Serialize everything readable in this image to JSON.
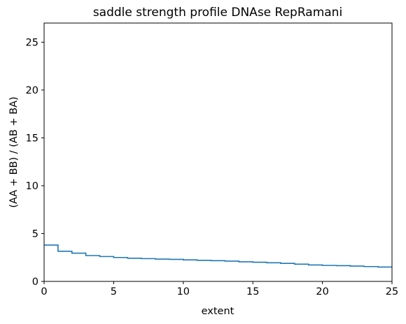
{
  "chart_data": {
    "type": "line",
    "drawstyle": "steps-post",
    "title": "saddle strength profile DNAse RepRamani",
    "xlabel": "extent",
    "ylabel": "(AA + BB) / (AB + BA)",
    "xlim": [
      0,
      25
    ],
    "ylim": [
      0,
      27
    ],
    "xticks": [
      0,
      5,
      10,
      15,
      20,
      25
    ],
    "yticks": [
      0,
      5,
      10,
      15,
      20,
      25
    ],
    "grid": false,
    "color": "#1f77b4",
    "series": [
      {
        "x": [
          0,
          1,
          2,
          3,
          4,
          5,
          6,
          7,
          8,
          9,
          10,
          11,
          12,
          13,
          14,
          15,
          16,
          17,
          18,
          19,
          20,
          21,
          22,
          23,
          24,
          25
        ],
        "y": [
          3.8,
          3.15,
          2.95,
          2.7,
          2.6,
          2.5,
          2.42,
          2.38,
          2.33,
          2.3,
          2.25,
          2.2,
          2.17,
          2.12,
          2.05,
          2.0,
          1.95,
          1.88,
          1.8,
          1.72,
          1.67,
          1.65,
          1.6,
          1.55,
          1.5,
          1.5
        ]
      }
    ]
  }
}
